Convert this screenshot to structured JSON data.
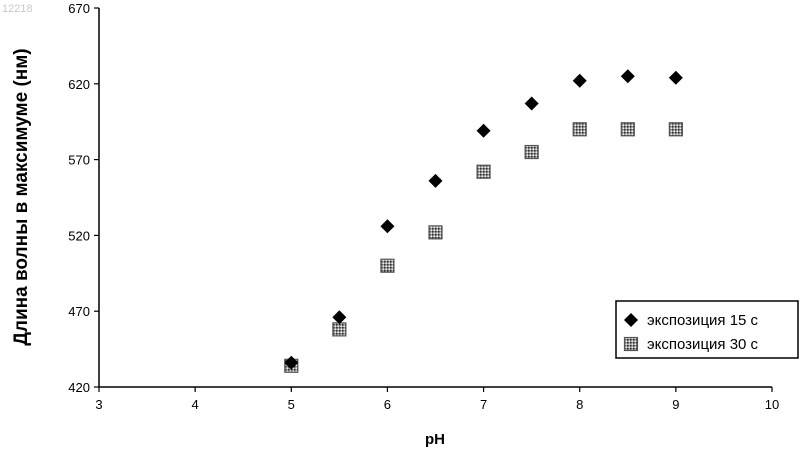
{
  "watermark": "12218",
  "chart_data": {
    "type": "scatter",
    "xlabel": "pH",
    "ylabel": "Длина волны в максимуме (нм)",
    "xlim": [
      3,
      10
    ],
    "ylim": [
      420,
      670
    ],
    "x_ticks": [
      "3",
      "4",
      "5",
      "6",
      "7",
      "8",
      "9",
      "10"
    ],
    "y_ticks": [
      "420",
      "470",
      "520",
      "570",
      "620",
      "670"
    ],
    "grid": false,
    "legend_position": "bottom-right",
    "series": [
      {
        "name": "экспозиция 15 с",
        "marker": "diamond",
        "color": "#000000",
        "x": [
          5,
          5.5,
          6,
          6.5,
          7,
          7.5,
          8,
          8.5,
          9
        ],
        "y": [
          436,
          466,
          526,
          556,
          589,
          607,
          622,
          625,
          624
        ]
      },
      {
        "name": "экспозиция 30 с",
        "marker": "square",
        "color": "#555555",
        "x": [
          5,
          5.5,
          6,
          6.5,
          7,
          7.5,
          8,
          8.5,
          9
        ],
        "y": [
          434,
          458,
          500,
          522,
          562,
          575,
          590,
          590,
          590
        ]
      }
    ]
  }
}
